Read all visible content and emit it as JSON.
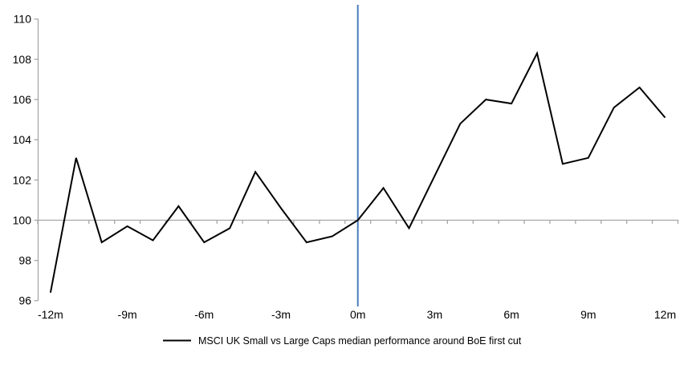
{
  "chart_data": {
    "type": "line",
    "title": "",
    "xlabel": "",
    "ylabel": "",
    "x_months": [
      -12,
      -11,
      -10,
      -9,
      -8,
      -7,
      -6,
      -5,
      -4,
      -3,
      -2,
      -1,
      0,
      1,
      2,
      3,
      4,
      5,
      6,
      7,
      8,
      9,
      10,
      11,
      12
    ],
    "series": [
      {
        "name": "MSCI UK Small vs Large Caps median performance around BoE first cut",
        "color": "#000000",
        "values": [
          96.4,
          103.1,
          98.9,
          99.7,
          99.0,
          100.7,
          98.9,
          99.6,
          102.4,
          100.6,
          98.9,
          99.2,
          100.0,
          101.6,
          99.6,
          102.2,
          104.8,
          106.0,
          105.8,
          108.3,
          102.8,
          103.1,
          105.6,
          106.6,
          105.1
        ]
      }
    ],
    "ylim": [
      96,
      110
    ],
    "yticks": [
      96,
      98,
      100,
      102,
      104,
      106,
      108,
      110
    ],
    "xticks": [
      {
        "month": -12,
        "label": "-12m"
      },
      {
        "month": -9,
        "label": "-9m"
      },
      {
        "month": -6,
        "label": "-6m"
      },
      {
        "month": -3,
        "label": "-3m"
      },
      {
        "month": 0,
        "label": "0m"
      },
      {
        "month": 3,
        "label": "3m"
      },
      {
        "month": 6,
        "label": "6m"
      },
      {
        "month": 9,
        "label": "9m"
      },
      {
        "month": 12,
        "label": "12m"
      }
    ],
    "baseline_value": 100,
    "event_line_month": 0,
    "legend_position": "bottom",
    "grid": false
  },
  "colors": {
    "series": "#000000",
    "event_line": "#4a7ebb",
    "axis": "#a6a6a6",
    "text": "#000000",
    "background": "#ffffff"
  }
}
